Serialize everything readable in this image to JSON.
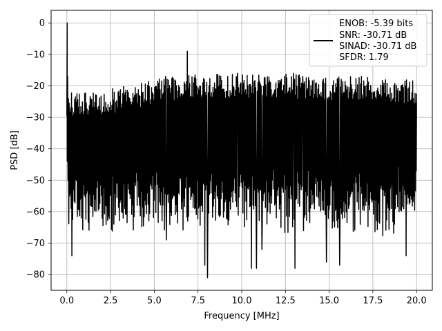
{
  "chart_data": {
    "type": "line",
    "xlabel": "Frequency [MHz]",
    "ylabel": "PSD [dB]",
    "xlim": [
      -0.9,
      20.9
    ],
    "ylim": [
      -85,
      4
    ],
    "x_ticks": [
      0.0,
      2.5,
      5.0,
      7.5,
      10.0,
      12.5,
      15.0,
      17.5,
      20.0
    ],
    "x_tick_labels": [
      "0.0",
      "2.5",
      "5.0",
      "7.5",
      "10.0",
      "12.5",
      "15.0",
      "17.5",
      "20.0"
    ],
    "y_ticks": [
      0,
      -10,
      -20,
      -30,
      -40,
      -50,
      -60,
      -70,
      -80
    ],
    "y_tick_labels": [
      "0",
      "−10",
      "−20",
      "−30",
      "−40",
      "−50",
      "−60",
      "−70",
      "−80"
    ],
    "grid": true,
    "legend_position": "top-right",
    "legend_lines": [
      "ENOB: -5.39 bits",
      "SNR: -30.71 dB",
      "SINAD: -30.71 dB",
      "SFDR: 1.79"
    ],
    "series_color": "#000000",
    "spectrum": {
      "x_start": 0.0,
      "x_end": 20.0,
      "n_points": 900,
      "fundamental": {
        "x": 0.02,
        "y": 0.0
      },
      "peaks": [
        {
          "x": 6.9,
          "y": -9
        },
        {
          "x": 5.65,
          "y": -17
        },
        {
          "x": 12.95,
          "y": -16
        },
        {
          "x": 9.75,
          "y": -16
        },
        {
          "x": 13.5,
          "y": -17
        }
      ],
      "dips": [
        {
          "x": 0.3,
          "y": -74
        },
        {
          "x": 8.05,
          "y": -81
        },
        {
          "x": 7.9,
          "y": -77
        },
        {
          "x": 10.55,
          "y": -78
        },
        {
          "x": 10.85,
          "y": -78
        },
        {
          "x": 13.05,
          "y": -78
        },
        {
          "x": 14.85,
          "y": -76
        },
        {
          "x": 15.6,
          "y": -77
        },
        {
          "x": 19.4,
          "y": -74
        },
        {
          "x": 11.15,
          "y": -72
        },
        {
          "x": 5.7,
          "y": -69
        }
      ],
      "upper_envelope": [
        [
          0.0,
          -22
        ],
        [
          2.5,
          -21
        ],
        [
          5.0,
          -18
        ],
        [
          7.5,
          -16
        ],
        [
          10.0,
          -16
        ],
        [
          12.5,
          -16
        ],
        [
          15.0,
          -17
        ],
        [
          17.5,
          -17
        ],
        [
          20.0,
          -18
        ]
      ],
      "lower_envelope": [
        [
          0.0,
          -62
        ],
        [
          2.5,
          -63
        ],
        [
          5.0,
          -62
        ],
        [
          7.5,
          -62
        ],
        [
          10.0,
          -60
        ],
        [
          12.5,
          -62
        ],
        [
          15.0,
          -63
        ],
        [
          17.5,
          -63
        ],
        [
          20.0,
          -60
        ]
      ]
    }
  }
}
